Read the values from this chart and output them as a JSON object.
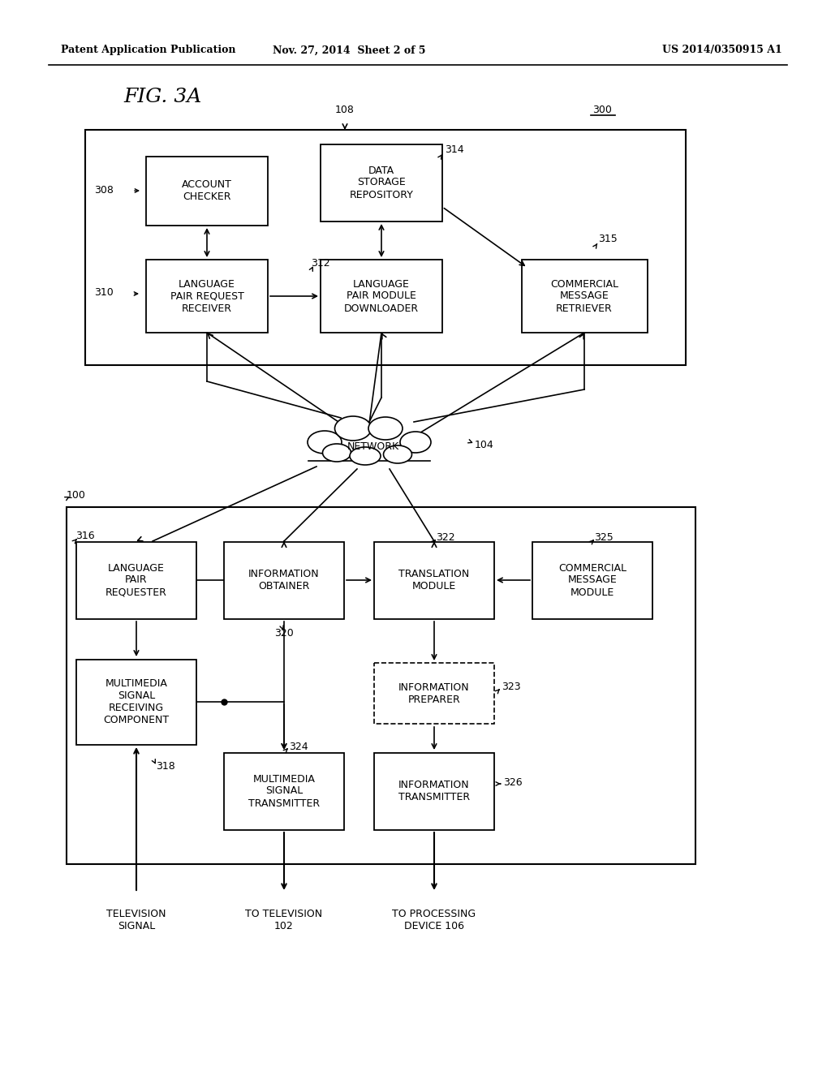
{
  "header_left": "Patent Application Publication",
  "header_mid": "Nov. 27, 2014  Sheet 2 of 5",
  "header_right": "US 2014/0350915 A1",
  "fig_label": "FIG. 3A",
  "bg_color": "#ffffff"
}
